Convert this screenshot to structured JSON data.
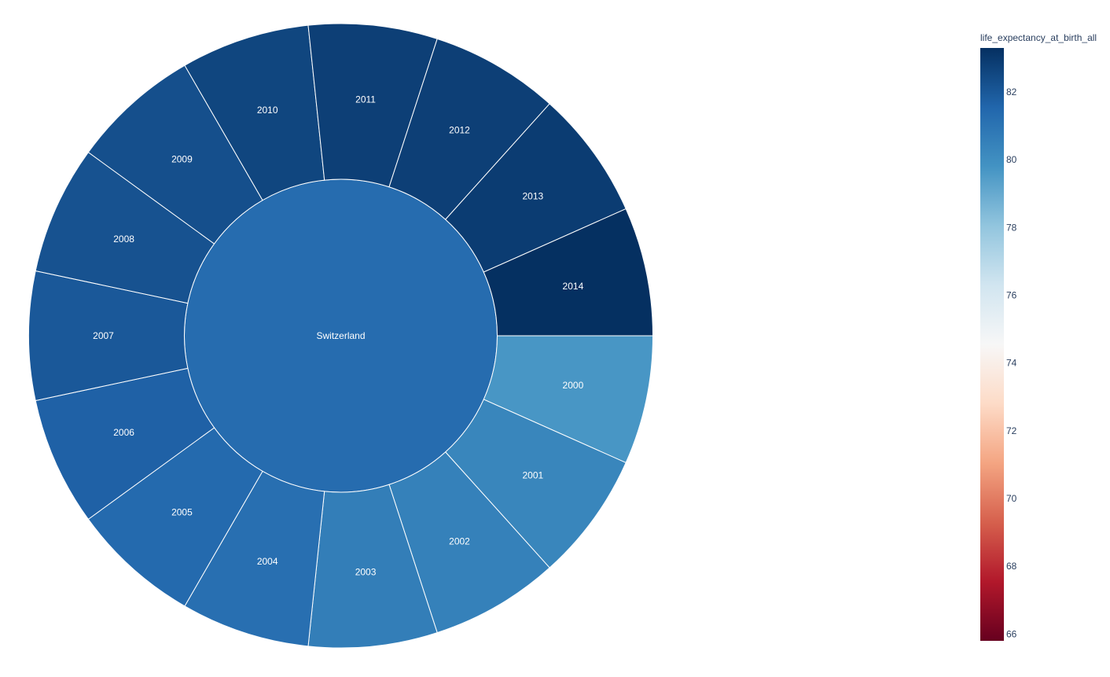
{
  "chart_data": {
    "type": "sunburst",
    "root": {
      "label": "Switzerland",
      "value": 81.3
    },
    "children": [
      {
        "label": "2000",
        "value": 79.7
      },
      {
        "label": "2001",
        "value": 80.3
      },
      {
        "label": "2002",
        "value": 80.5
      },
      {
        "label": "2003",
        "value": 80.6
      },
      {
        "label": "2004",
        "value": 81.2
      },
      {
        "label": "2005",
        "value": 81.4
      },
      {
        "label": "2006",
        "value": 81.7
      },
      {
        "label": "2007",
        "value": 82.0
      },
      {
        "label": "2008",
        "value": 82.2
      },
      {
        "label": "2009",
        "value": 82.3
      },
      {
        "label": "2010",
        "value": 82.6
      },
      {
        "label": "2011",
        "value": 82.8
      },
      {
        "label": "2012",
        "value": 82.8
      },
      {
        "label": "2013",
        "value": 82.9
      },
      {
        "label": "2014",
        "value": 83.3
      }
    ],
    "colorbar": {
      "title": "life_expectancy_at_birth_all",
      "min": 65.8,
      "max": 83.3,
      "ticks": [
        66,
        68,
        70,
        72,
        74,
        76,
        78,
        80,
        82
      ],
      "colorscale": "RdBu",
      "colors": [
        "#67001f",
        "#b2182b",
        "#d6604d",
        "#f4a582",
        "#fddbc7",
        "#f7f7f7",
        "#d1e5f0",
        "#92c5de",
        "#4393c3",
        "#2166ac",
        "#053061"
      ]
    }
  }
}
